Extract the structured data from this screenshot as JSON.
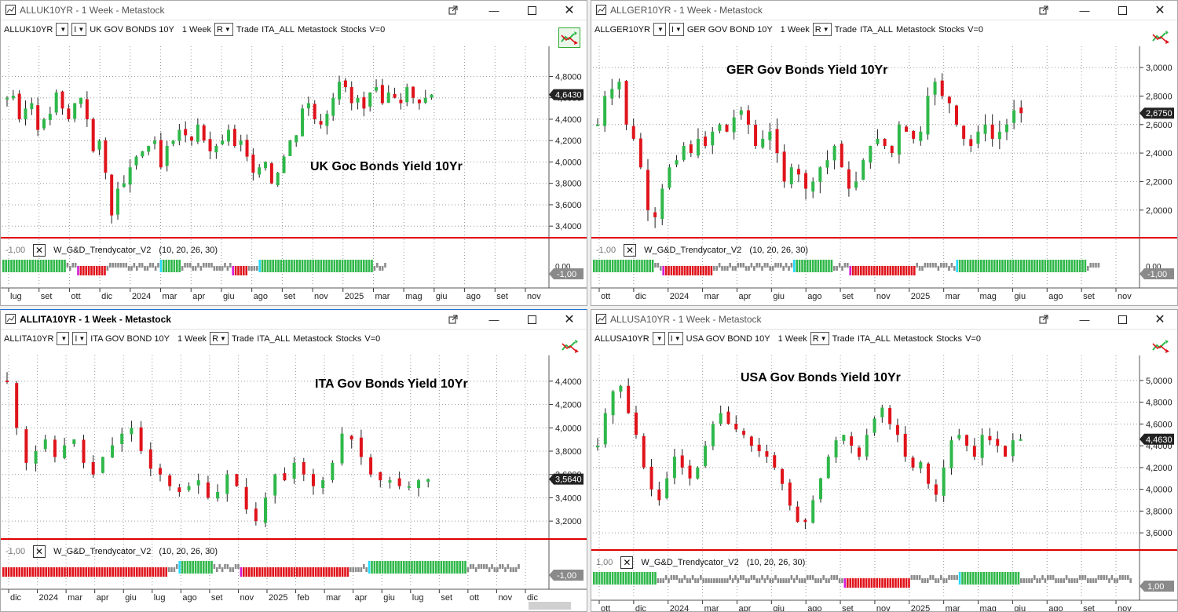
{
  "windows": [
    {
      "id": "uk",
      "title": "ALLUK10YR - 1 Week - Metastock",
      "active": false,
      "symbol": "ALLUK10YR",
      "period_dd": "I",
      "description": "UK GOV BONDS 10Y",
      "interval": "1 Week",
      "mode_dd": "R",
      "trade": "Trade",
      "list": "ITA_ALL",
      "source": "Metastock",
      "category": "Stocks",
      "v": "V=0",
      "chart_label": "UK Goc Bonds Yield 10Yr",
      "indicator": {
        "min_label": "-1,00",
        "name": "W_G&D_Trendycator_V2",
        "params": "(10,  20,  26,  30)",
        "zero_label": "0,00",
        "badge": "-1,00"
      },
      "price_badge": "4,6430",
      "y_ticks": [
        "4,8000",
        "4,6000",
        "4,4000",
        "4,2000",
        "4,0000",
        "3,8000",
        "3,6000",
        "3,4000"
      ],
      "x_ticks": [
        "lug",
        "set",
        "ott",
        "dic",
        "2024",
        "mar",
        "apr",
        "giu",
        "ago",
        "set",
        "nov",
        "2025",
        "mar",
        "mag",
        "giu",
        "ago",
        "set",
        "nov"
      ],
      "trend_bar": [
        [
          "G",
          24
        ],
        [
          "X",
          4
        ],
        [
          "M",
          1
        ],
        [
          "R",
          10
        ],
        [
          "X",
          20
        ],
        [
          "C",
          1
        ],
        [
          "G",
          7
        ],
        [
          "X",
          10
        ],
        [
          "X",
          9
        ],
        [
          "M",
          1
        ],
        [
          "R",
          5
        ],
        [
          "X",
          4
        ],
        [
          "C",
          1
        ],
        [
          "G",
          42
        ],
        [
          "X",
          5
        ]
      ]
    },
    {
      "id": "ger",
      "title": "ALLGER10YR - 1 Week - Metastock",
      "active": false,
      "symbol": "ALLGER10YR",
      "period_dd": "I",
      "description": "GER GOV BOND 10Y",
      "interval": "1 Week",
      "mode_dd": "R",
      "trade": "Trade",
      "list": "ITA_ALL",
      "source": "Metastock",
      "category": "Stocks",
      "v": "V=0",
      "chart_label": "GER Gov Bonds Yield 10Yr",
      "indicator": {
        "min_label": "-1,00",
        "name": "W_G&D_Trendycator_V2",
        "params": "(10,  20,  26,  30)",
        "zero_label": "0,00",
        "badge": "-1,00"
      },
      "price_badge": "2,6750",
      "y_ticks": [
        "3,0000",
        "2,8000",
        "2,6000",
        "2,4000",
        "2,2000",
        "2,0000"
      ],
      "x_ticks": [
        "ott",
        "dic",
        "2024",
        "mar",
        "apr",
        "giu",
        "ago",
        "set",
        "nov",
        "2025",
        "mar",
        "mag",
        "giu",
        "ago",
        "set",
        "nov"
      ],
      "trend_bar": [
        [
          "G",
          23
        ],
        [
          "X",
          3
        ],
        [
          "M",
          1
        ],
        [
          "R",
          18
        ],
        [
          "X",
          30
        ],
        [
          "C",
          1
        ],
        [
          "G",
          14
        ],
        [
          "X",
          6
        ],
        [
          "M",
          1
        ],
        [
          "R",
          24
        ],
        [
          "X",
          13
        ],
        [
          "X",
          2
        ],
        [
          "C",
          1
        ],
        [
          "G",
          48
        ],
        [
          "X",
          5
        ]
      ]
    },
    {
      "id": "ita",
      "title": "ALLITA10YR - 1 Week - Metastock",
      "active": true,
      "symbol": "ALLITA10YR",
      "period_dd": "I",
      "description": "ITA GOV BOND 10Y",
      "interval": "1 Week",
      "mode_dd": "R",
      "trade": "Trade",
      "list": "ITA_ALL",
      "source": "Metastock",
      "category": "Stocks",
      "v": "V=0",
      "chart_label": "ITA Gov Bonds Yield 10Yr",
      "indicator": {
        "min_label": "-1,00",
        "name": "W_G&D_Trendycator_V2",
        "params": "(10,  20,  26,  30)",
        "zero_label": "",
        "badge": "-1,00"
      },
      "price_badge": "3,5640",
      "y_ticks": [
        "4,4000",
        "4,2000",
        "4,0000",
        "3,8000",
        "3,6000",
        "3,4000",
        "3,2000"
      ],
      "x_ticks": [
        "dic",
        "2024",
        "mar",
        "apr",
        "giu",
        "lug",
        "ago",
        "set",
        "nov",
        "2025",
        "feb",
        "mar",
        "apr",
        "giu",
        "lug",
        "set",
        "ott",
        "nov",
        "dic"
      ],
      "trend_bar": [
        [
          "R",
          62
        ],
        [
          "X",
          4
        ],
        [
          "C",
          1
        ],
        [
          "G",
          12
        ],
        [
          "X",
          10
        ],
        [
          "M",
          1
        ],
        [
          "R",
          40
        ],
        [
          "X",
          7
        ],
        [
          "C",
          1
        ],
        [
          "G",
          36
        ],
        [
          "X",
          20
        ]
      ]
    },
    {
      "id": "usa",
      "title": "ALLUSA10YR - 1 Week - Metastock",
      "active": false,
      "symbol": "ALLUSA10YR",
      "period_dd": "I",
      "description": "USA GOV BOND 10Y",
      "interval": "1 Week",
      "mode_dd": "R",
      "trade": "Trade",
      "list": "ITA_ALL",
      "source": "Metastock",
      "category": "Stocks",
      "v": "V=0",
      "chart_label": "USA Gov Bonds Yield 10Yr",
      "indicator": {
        "min_label": "1,00",
        "name": "W_G&D_Trendycator_V2",
        "params": "(10,  20,  26,  30)",
        "zero_label": "",
        "badge": "1,00"
      },
      "price_badge": "4,4630",
      "y_ticks": [
        "5,0000",
        "4,8000",
        "4,6000",
        "4,4000",
        "4,2000",
        "4,0000",
        "3,8000",
        "3,6000"
      ],
      "x_ticks": [
        "ott",
        "dic",
        "2024",
        "mar",
        "apr",
        "giu",
        "ago",
        "set",
        "nov",
        "2025",
        "mar",
        "mag",
        "giu",
        "ago",
        "set",
        "nov"
      ],
      "trend_bar": [
        [
          "G",
          24
        ],
        [
          "X",
          20
        ],
        [
          "X",
          50
        ],
        [
          "M",
          1
        ],
        [
          "R",
          24
        ],
        [
          "X",
          18
        ],
        [
          "C",
          1
        ],
        [
          "G",
          22
        ],
        [
          "X",
          24
        ],
        [
          "X",
          18
        ]
      ]
    }
  ],
  "colors": {
    "up": "#2fb84a",
    "down": "#e0131b",
    "neutral": "#8c8c8c",
    "cyan": "#25d9ff",
    "magenta": "#d61ad6",
    "separator": "#e00000"
  }
}
